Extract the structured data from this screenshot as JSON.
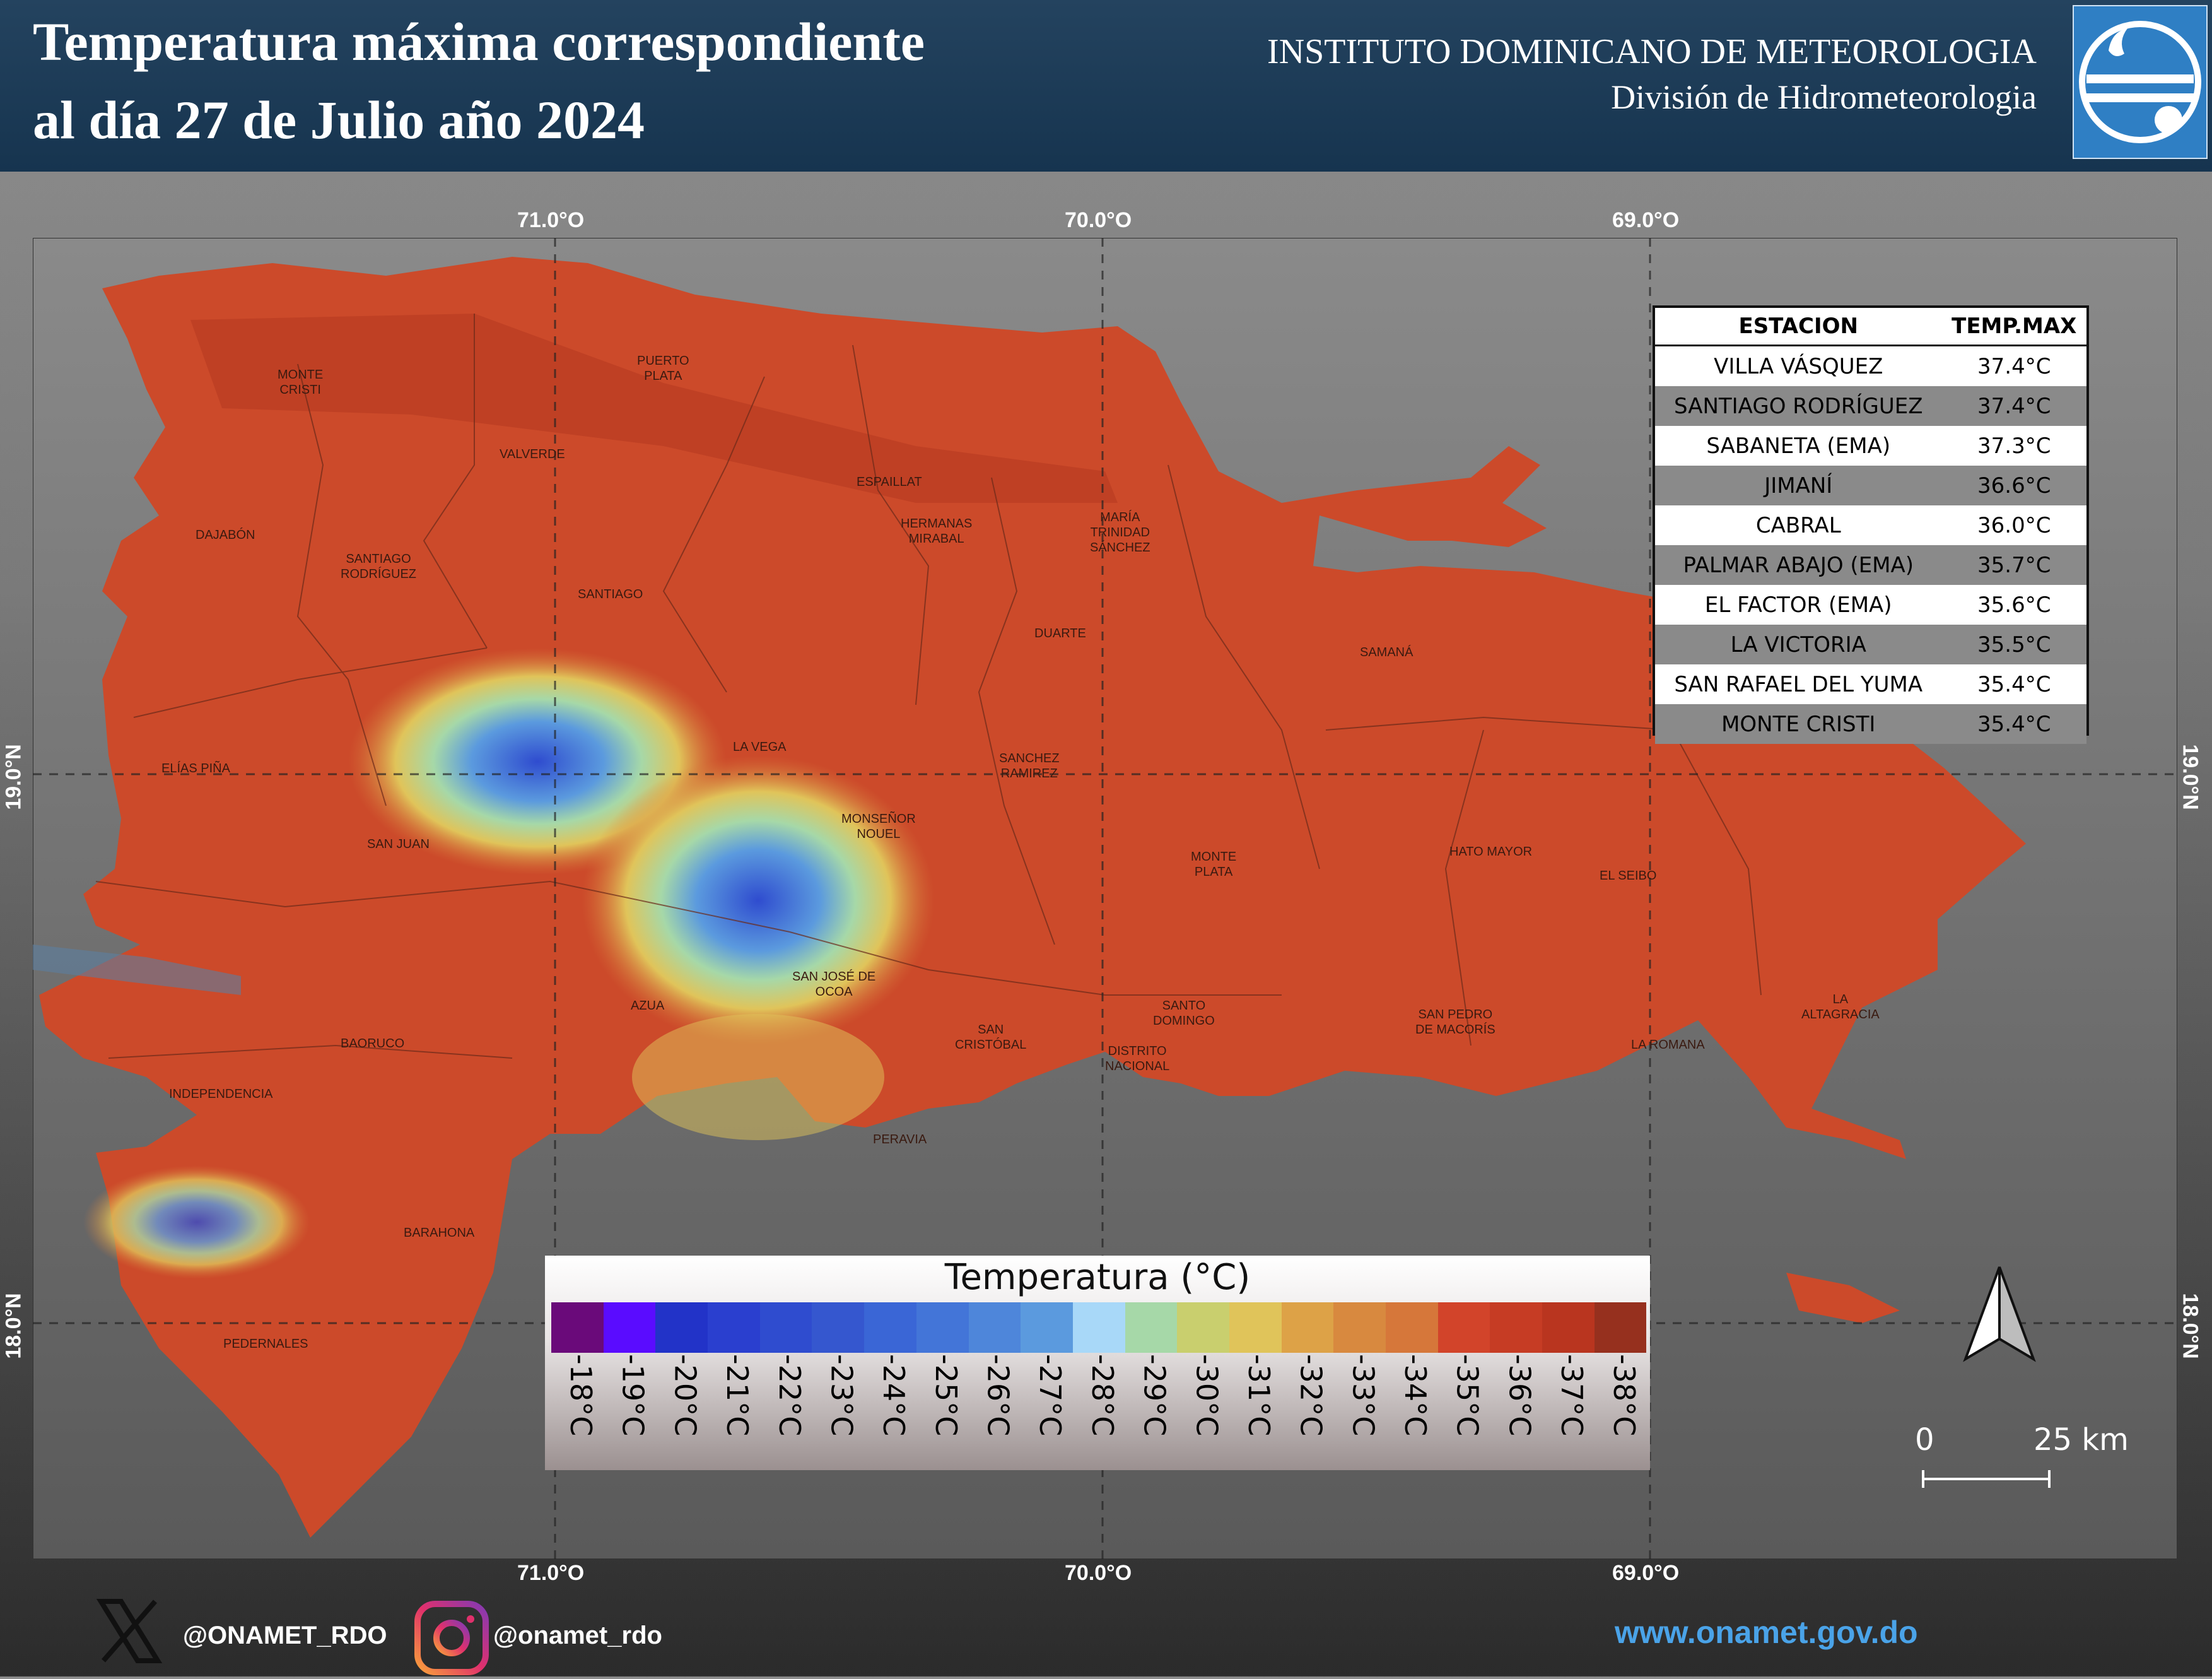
{
  "header": {
    "title_line1": "Temperatura máxima correspondiente",
    "title_line2": "al día 27 de Julio año 2024",
    "institute": "INSTITUTO DOMINICANO DE METEOROLOGIA",
    "division": "División de Hidrometeorologia",
    "logo_icon": "onamet-logo-icon"
  },
  "coordinates": {
    "lon_labels": [
      "71.0°O",
      "70.0°O",
      "69.0°O"
    ],
    "lat_labels": [
      "19.0°N",
      "18.0°N"
    ]
  },
  "provinces": [
    {
      "name": "MONTE\nCRISTI"
    },
    {
      "name": "PUERTO\nPLATA"
    },
    {
      "name": "VALVERDE"
    },
    {
      "name": "ESPAILLAT"
    },
    {
      "name": "HERMANAS\nMIRABAL"
    },
    {
      "name": "MARÍA\nTRINIDAD\nSÁNCHEZ"
    },
    {
      "name": "DAJABÓN"
    },
    {
      "name": "SANTIAGO\nRODRÍGUEZ"
    },
    {
      "name": "SANTIAGO"
    },
    {
      "name": "DUARTE"
    },
    {
      "name": "SAMANÁ"
    },
    {
      "name": "LA VEGA"
    },
    {
      "name": "SANCHEZ\nRAMIREZ"
    },
    {
      "name": "ELÍAS PIÑA"
    },
    {
      "name": "MONSEÑOR\nNOUEL"
    },
    {
      "name": "SAN JUAN"
    },
    {
      "name": "MONTE\nPLATA"
    },
    {
      "name": "HATO MAYOR"
    },
    {
      "name": "EL SEIBO"
    },
    {
      "name": "SAN JOSÉ DE\nOCOA"
    },
    {
      "name": "AZUA"
    },
    {
      "name": "SANTO\nDOMINGO"
    },
    {
      "name": "SAN PEDRO\nDE MACORÍS"
    },
    {
      "name": "LA\nALTAGRACIA"
    },
    {
      "name": "BAORUCO"
    },
    {
      "name": "SAN\nCRISTÓBAL"
    },
    {
      "name": "DISTRITO\nNACIONAL"
    },
    {
      "name": "LA ROMANA"
    },
    {
      "name": "INDEPENDENCIA"
    },
    {
      "name": "PERAVIA"
    },
    {
      "name": "BARAHONA"
    },
    {
      "name": "PEDERNALES"
    }
  ],
  "station_table": {
    "headers": [
      "ESTACION",
      "TEMP.MAX"
    ],
    "rows": [
      {
        "station": "VILLA VÁSQUEZ",
        "temp": "37.4°C"
      },
      {
        "station": "SANTIAGO RODRÍGUEZ",
        "temp": "37.4°C"
      },
      {
        "station": "SABANETA (EMA)",
        "temp": "37.3°C"
      },
      {
        "station": "JIMANÍ",
        "temp": "36.6°C"
      },
      {
        "station": "CABRAL",
        "temp": "36.0°C"
      },
      {
        "station": "PALMAR ABAJO (EMA)",
        "temp": "35.7°C"
      },
      {
        "station": "EL FACTOR (EMA)",
        "temp": "35.6°C"
      },
      {
        "station": "LA VICTORIA",
        "temp": "35.5°C"
      },
      {
        "station": "SAN RAFAEL DEL YUMA",
        "temp": "35.4°C"
      },
      {
        "station": "MONTE CRISTI",
        "temp": "35.4°C"
      }
    ]
  },
  "legend": {
    "title": "Temperatura (°C)",
    "classes": [
      {
        "label": "-18°C",
        "color": "#6a0a7a"
      },
      {
        "label": "-19°C",
        "color": "#5a0cff"
      },
      {
        "label": "-20°C",
        "color": "#2233c8"
      },
      {
        "label": "-21°C",
        "color": "#2a3fcf"
      },
      {
        "label": "-22°C",
        "color": "#2f4ccf"
      },
      {
        "label": "-23°C",
        "color": "#3557cf"
      },
      {
        "label": "-24°C",
        "color": "#3a66d6"
      },
      {
        "label": "-25°C",
        "color": "#4375d8"
      },
      {
        "label": "-26°C",
        "color": "#4e86da"
      },
      {
        "label": "-27°C",
        "color": "#5b9ade"
      },
      {
        "label": "-28°C",
        "color": "#a8d8f8"
      },
      {
        "label": "-29°C",
        "color": "#a6d8a8"
      },
      {
        "label": "-30°C",
        "color": "#c9cf6e"
      },
      {
        "label": "-31°C",
        "color": "#e0c45a"
      },
      {
        "label": "-32°C",
        "color": "#dda247"
      },
      {
        "label": "-33°C",
        "color": "#d8893f"
      },
      {
        "label": "-34°C",
        "color": "#d6773a"
      },
      {
        "label": "-35°C",
        "color": "#d2442a"
      },
      {
        "label": "-36°C",
        "color": "#c63c24"
      },
      {
        "label": "-37°C",
        "color": "#b9351f"
      },
      {
        "label": "-38°C",
        "color": "#96301e"
      }
    ]
  },
  "scale": {
    "start": "0",
    "end": "25 km"
  },
  "north_arrow_icon": "north-arrow-icon",
  "footer": {
    "x_handle": "@ONAMET_RDO",
    "ig_handle": "@onamet_rdo",
    "website": "www.onamet.gov.do",
    "x_icon": "x-logo-icon",
    "ig_icon": "instagram-icon"
  }
}
